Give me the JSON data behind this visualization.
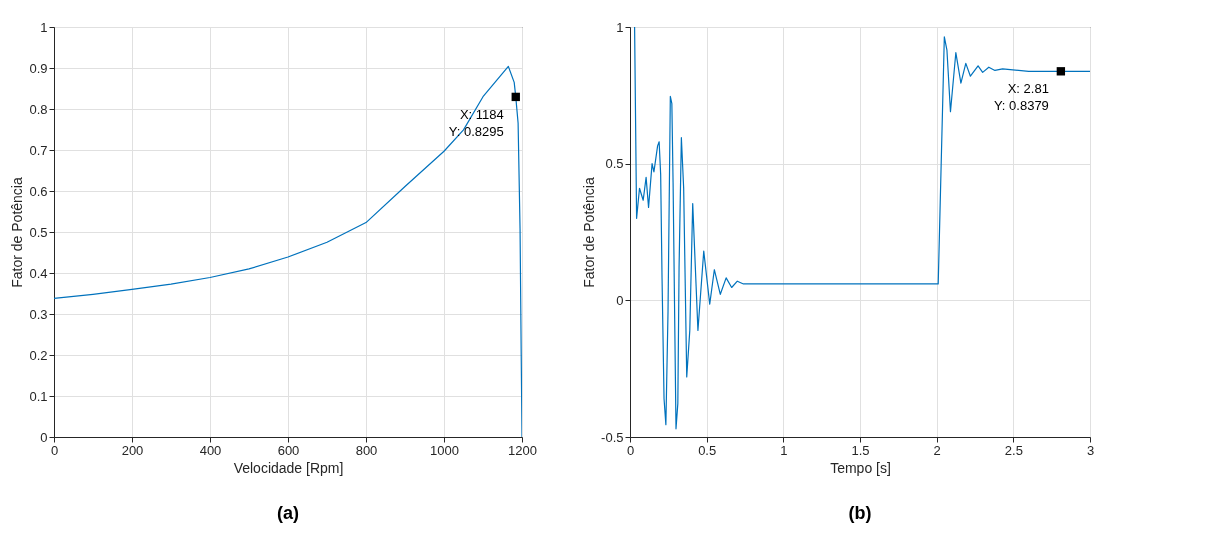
{
  "chart_data": [
    {
      "type": "line",
      "xlabel": "Velocidade [Rpm]",
      "ylabel": "Fator de Potência",
      "xlim": [
        0,
        1200
      ],
      "ylim": [
        0,
        1
      ],
      "xticks": [
        0,
        200,
        400,
        600,
        800,
        1000,
        1200
      ],
      "yticks": [
        0,
        0.1,
        0.2,
        0.3,
        0.4,
        0.5,
        0.6,
        0.7,
        0.8,
        0.9,
        1
      ],
      "grid": true,
      "series": [
        {
          "color": "#0072bd",
          "x": [
            0,
            100,
            200,
            300,
            400,
            500,
            600,
            700,
            800,
            900,
            1000,
            1050,
            1100,
            1165,
            1180,
            1184,
            1190,
            1195,
            1198,
            1200
          ],
          "values": [
            0.338,
            0.348,
            0.36,
            0.373,
            0.389,
            0.41,
            0.439,
            0.475,
            0.523,
            0.611,
            0.697,
            0.749,
            0.83,
            0.904,
            0.865,
            0.8295,
            0.766,
            0.508,
            0.2,
            0
          ]
        }
      ],
      "annotations": [
        "(a)",
        {
          "text": "X: 1184\nY: 0.8295",
          "x": 1184,
          "y": 0.8295
        }
      ]
    },
    {
      "type": "line",
      "xlabel": "Tempo [s]",
      "ylabel": "Fator de Potência",
      "xlim": [
        0,
        3
      ],
      "ylim": [
        -0.5,
        1
      ],
      "xticks": [
        0,
        0.5,
        1,
        1.5,
        2,
        2.5,
        3
      ],
      "yticks": [
        -0.5,
        0,
        0.5,
        1
      ],
      "grid": true,
      "series": [
        {
          "color": "#0072bd",
          "x": [
            0.03,
            0.043,
            0.062,
            0.086,
            0.105,
            0.121,
            0.144,
            0.156,
            0.18,
            0.19,
            0.2,
            0.209,
            0.222,
            0.234,
            0.248,
            0.263,
            0.273,
            0.281,
            0.3,
            0.312,
            0.32,
            0.335,
            0.35,
            0.37,
            0.39,
            0.409,
            0.443,
            0.481,
            0.52,
            0.55,
            0.589,
            0.627,
            0.663,
            0.7,
            0.74,
            1,
            1.5,
            2.01,
            2.05,
            2.067,
            2.09,
            2.125,
            2.158,
            2.19,
            2.22,
            2.27,
            2.3,
            2.34,
            2.38,
            2.43,
            2.6,
            2.81,
            3
          ],
          "values": [
            1,
            0.3,
            0.41,
            0.366,
            0.45,
            0.34,
            0.5,
            0.47,
            0.565,
            0.58,
            0.46,
            0.08,
            -0.36,
            -0.455,
            -0.04,
            0.746,
            0.72,
            0.43,
            -0.47,
            -0.377,
            0.12,
            0.595,
            0.41,
            -0.28,
            -0.11,
            0.354,
            -0.11,
            0.18,
            -0.014,
            0.112,
            0.022,
            0.082,
            0.047,
            0.07,
            0.06,
            0.06,
            0.06,
            0.06,
            0.964,
            0.915,
            0.69,
            0.906,
            0.795,
            0.867,
            0.82,
            0.858,
            0.834,
            0.853,
            0.841,
            0.847,
            0.838,
            0.8379,
            0.838
          ]
        }
      ],
      "annotations": [
        "(b)",
        {
          "text": "X: 2.81\nY: 0.8379",
          "x": 2.81,
          "y": 0.8379
        }
      ]
    }
  ]
}
